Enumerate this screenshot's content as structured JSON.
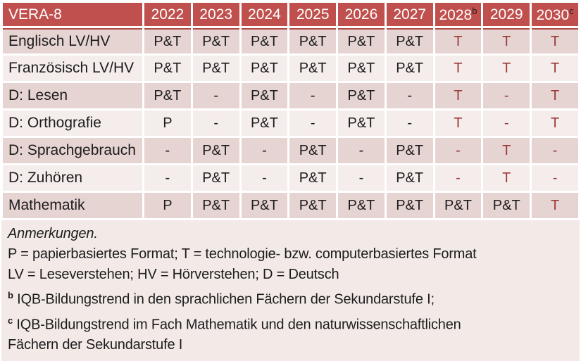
{
  "colors": {
    "header_bg": "#c0504d",
    "header_text": "#ffffff",
    "row_dark_bg": "#e6d4d2",
    "row_light_bg": "#f5edec",
    "notes_bg": "#f3eae8",
    "red_text": "#9c3a38",
    "black_text": "#1c1c1c",
    "header_rule": "#b04a47"
  },
  "table": {
    "corner_label": "VERA-8",
    "year_headers": [
      {
        "text": "2022",
        "sup": ""
      },
      {
        "text": "2023",
        "sup": ""
      },
      {
        "text": "2024",
        "sup": ""
      },
      {
        "text": "2025",
        "sup": ""
      },
      {
        "text": "2026",
        "sup": ""
      },
      {
        "text": "2027",
        "sup": ""
      },
      {
        "text": "2028",
        "sup": "b"
      },
      {
        "text": "2029",
        "sup": ""
      },
      {
        "text": "2030",
        "sup": "c"
      }
    ],
    "rows": [
      {
        "label": "Englisch LV/HV",
        "values": [
          "P&T",
          "P&T",
          "P&T",
          "P&T",
          "P&T",
          "P&T",
          "T",
          "T",
          "T"
        ],
        "red_cols": [
          6,
          7,
          8
        ]
      },
      {
        "label": "Französisch LV/HV",
        "values": [
          "P&T",
          "P&T",
          "P&T",
          "P&T",
          "P&T",
          "P&T",
          "T",
          "T",
          "T"
        ],
        "red_cols": [
          6,
          7,
          8
        ]
      },
      {
        "label": "D: Lesen",
        "values": [
          "P&T",
          "-",
          "P&T",
          "-",
          "P&T",
          "-",
          "T",
          "-",
          "T"
        ],
        "red_cols": [
          6,
          7,
          8
        ]
      },
      {
        "label": "D: Orthografie",
        "values": [
          "P",
          "-",
          "P&T",
          "-",
          "P&T",
          "-",
          "T",
          "-",
          "T"
        ],
        "red_cols": [
          6,
          7,
          8
        ]
      },
      {
        "label": "D: Sprachgebrauch",
        "values": [
          "-",
          "P&T",
          "-",
          "P&T",
          "-",
          "P&T",
          "-",
          "T",
          "-"
        ],
        "red_cols": [
          6,
          7,
          8
        ]
      },
      {
        "label": "D: Zuhören",
        "values": [
          "-",
          "P&T",
          "-",
          "P&T",
          "-",
          "P&T",
          "-",
          "T",
          "-"
        ],
        "red_cols": [
          6,
          7,
          8
        ]
      },
      {
        "label": "Mathematik",
        "values": [
          "P",
          "P&T",
          "P&T",
          "P&T",
          "P&T",
          "P&T",
          "P&T",
          "P&T",
          "T"
        ],
        "red_cols": [
          8
        ]
      }
    ]
  },
  "notes": {
    "title": "Anmerkungen.",
    "lines": [
      {
        "sup": "",
        "text": "P = papierbasiertes Format; T = technologie- bzw. computerbasiertes Format"
      },
      {
        "sup": "",
        "text": "LV = Leseverstehen; HV = Hörverstehen; D = Deutsch"
      },
      {
        "sup": "b",
        "text": "IQB-Bildungstrend in den sprachlichen Fächern der Sekundarstufe I;"
      },
      {
        "sup": "c",
        "text": "IQB-Bildungstrend im Fach Mathematik und den naturwissenschaftlichen"
      },
      {
        "sup": "",
        "text": "Fächern der Sekundarstufe I"
      }
    ]
  }
}
